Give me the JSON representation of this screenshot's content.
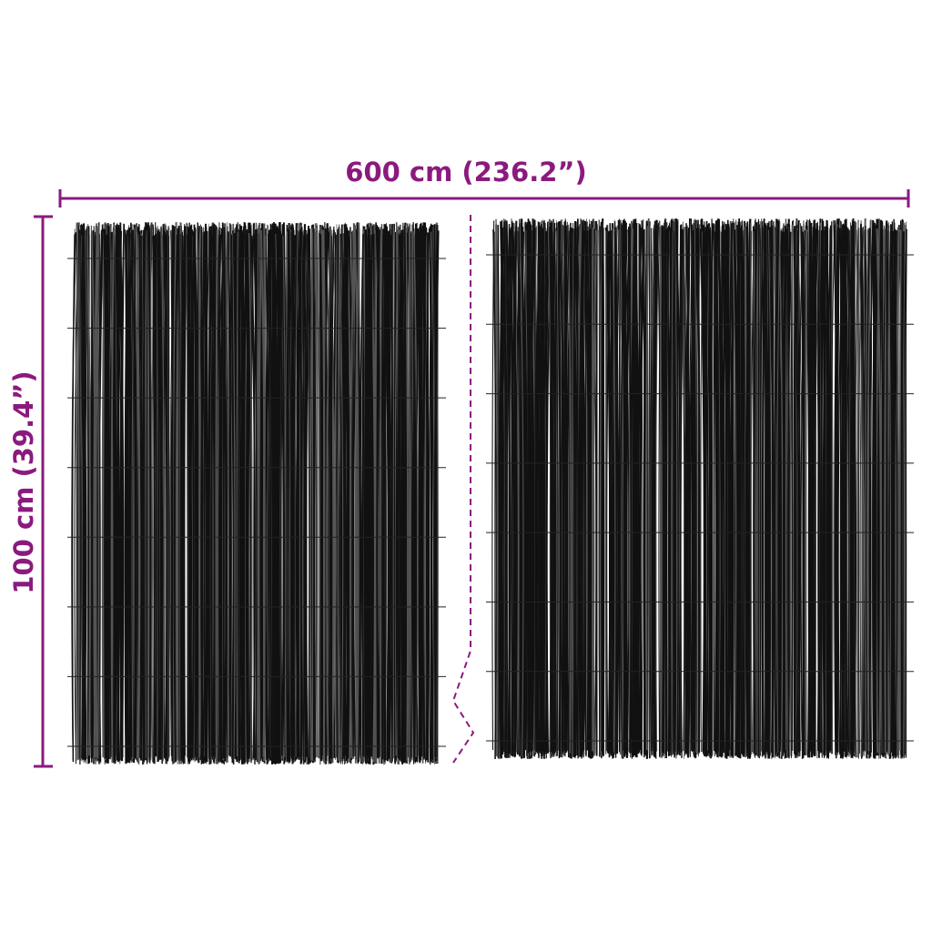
{
  "dimensions": {
    "width_label": "600 cm (236.2”)",
    "height_label": "100 cm (39.4”)"
  },
  "colors": {
    "dimension": "#8b1a7e",
    "reed": "#111111"
  },
  "product": {
    "panels": 2,
    "material_icon": "reed-fence-panel"
  }
}
